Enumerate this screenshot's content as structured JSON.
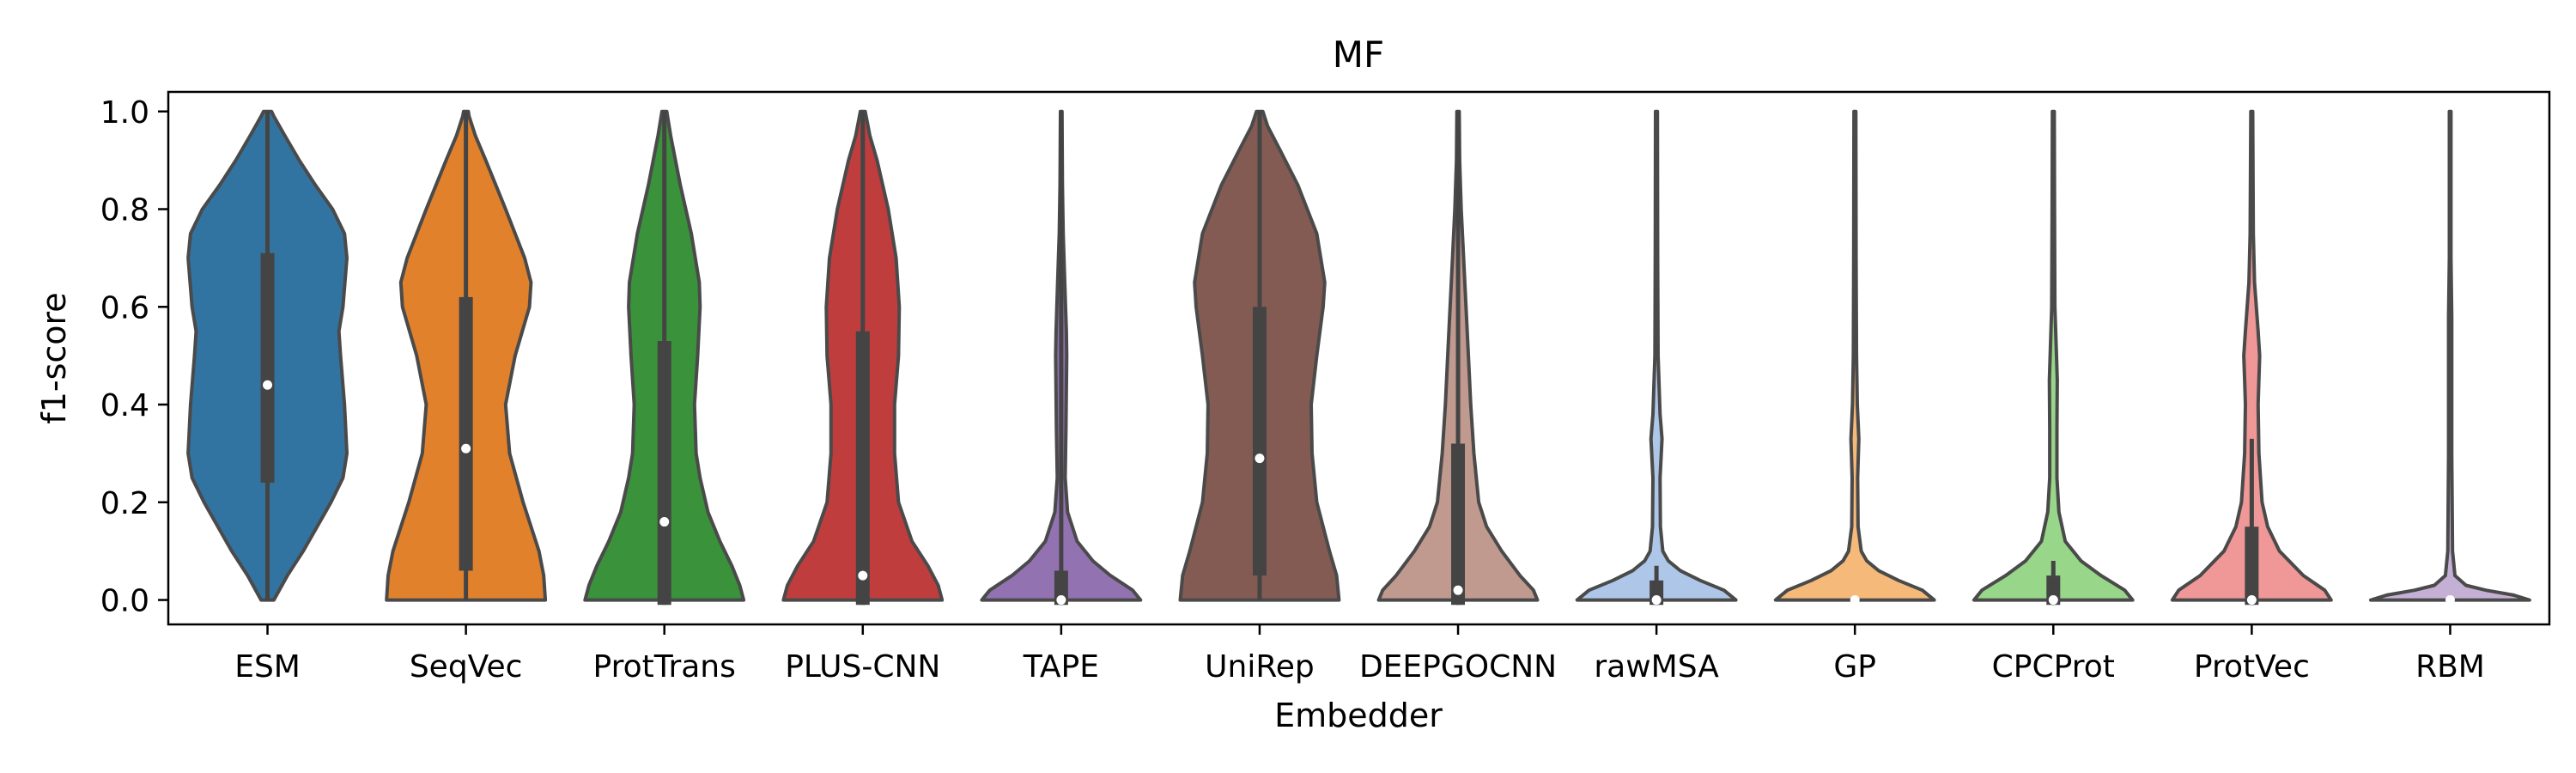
{
  "chart_data": {
    "type": "violin",
    "title": "MF",
    "xlabel": "Embedder",
    "ylabel": "f1-score",
    "ylim": [
      -0.05,
      1.04
    ],
    "yticks": [
      0.0,
      0.2,
      0.4,
      0.6,
      0.8,
      1.0
    ],
    "ytick_labels": [
      "0.0",
      "0.2",
      "0.4",
      "0.6",
      "0.8",
      "1.0"
    ],
    "grid": false,
    "legend": "none",
    "categories": [
      "ESM",
      "SeqVec",
      "ProtTrans",
      "PLUS-CNN",
      "TAPE",
      "UniRep",
      "DEEPGOCNN",
      "rawMSA",
      "GP",
      "CPCProt",
      "ProtVec",
      "RBM"
    ],
    "series": [
      {
        "name": "ESM",
        "color": "#3274a1",
        "median": 0.44,
        "q1": 0.24,
        "q3": 0.71,
        "whisker_low": 0.0,
        "whisker_high": 1.0,
        "density": [
          [
            0.0,
            0.08
          ],
          [
            0.05,
            0.25
          ],
          [
            0.1,
            0.45
          ],
          [
            0.2,
            0.8
          ],
          [
            0.25,
            0.95
          ],
          [
            0.3,
            1.0
          ],
          [
            0.4,
            0.97
          ],
          [
            0.5,
            0.92
          ],
          [
            0.55,
            0.9
          ],
          [
            0.6,
            0.95
          ],
          [
            0.7,
            1.0
          ],
          [
            0.75,
            0.97
          ],
          [
            0.8,
            0.82
          ],
          [
            0.85,
            0.6
          ],
          [
            0.9,
            0.4
          ],
          [
            0.95,
            0.22
          ],
          [
            0.99,
            0.08
          ],
          [
            1.0,
            0.05
          ]
        ]
      },
      {
        "name": "SeqVec",
        "color": "#e1812c",
        "median": 0.31,
        "q1": 0.06,
        "q3": 0.62,
        "whisker_low": 0.0,
        "whisker_high": 1.0,
        "density": [
          [
            0.0,
            1.0
          ],
          [
            0.05,
            0.98
          ],
          [
            0.1,
            0.92
          ],
          [
            0.2,
            0.72
          ],
          [
            0.3,
            0.55
          ],
          [
            0.4,
            0.5
          ],
          [
            0.5,
            0.62
          ],
          [
            0.6,
            0.8
          ],
          [
            0.65,
            0.82
          ],
          [
            0.7,
            0.74
          ],
          [
            0.8,
            0.5
          ],
          [
            0.9,
            0.25
          ],
          [
            0.95,
            0.12
          ],
          [
            0.99,
            0.04
          ],
          [
            1.0,
            0.03
          ]
        ]
      },
      {
        "name": "ProtTrans",
        "color": "#3a923a",
        "median": 0.16,
        "q1": -0.01,
        "q3": 0.53,
        "whisker_low": -0.01,
        "whisker_high": 1.0,
        "density": [
          [
            0.0,
            1.0
          ],
          [
            0.03,
            0.95
          ],
          [
            0.07,
            0.85
          ],
          [
            0.12,
            0.7
          ],
          [
            0.18,
            0.55
          ],
          [
            0.25,
            0.45
          ],
          [
            0.3,
            0.4
          ],
          [
            0.4,
            0.38
          ],
          [
            0.5,
            0.42
          ],
          [
            0.6,
            0.45
          ],
          [
            0.65,
            0.44
          ],
          [
            0.75,
            0.34
          ],
          [
            0.85,
            0.2
          ],
          [
            0.95,
            0.08
          ],
          [
            1.0,
            0.03
          ]
        ]
      },
      {
        "name": "PLUS-CNN",
        "color": "#c03d3e",
        "median": 0.05,
        "q1": -0.01,
        "q3": 0.55,
        "whisker_low": -0.01,
        "whisker_high": 1.0,
        "density": [
          [
            0.0,
            1.0
          ],
          [
            0.03,
            0.95
          ],
          [
            0.07,
            0.82
          ],
          [
            0.12,
            0.62
          ],
          [
            0.2,
            0.45
          ],
          [
            0.3,
            0.4
          ],
          [
            0.4,
            0.4
          ],
          [
            0.5,
            0.45
          ],
          [
            0.6,
            0.46
          ],
          [
            0.7,
            0.42
          ],
          [
            0.8,
            0.32
          ],
          [
            0.9,
            0.18
          ],
          [
            0.95,
            0.09
          ],
          [
            1.0,
            0.03
          ]
        ]
      },
      {
        "name": "TAPE",
        "color": "#9372b2",
        "median": 0.0,
        "q1": -0.01,
        "q3": 0.06,
        "whisker_low": -0.01,
        "whisker_high": 1.0,
        "density": [
          [
            0.0,
            1.0
          ],
          [
            0.02,
            0.9
          ],
          [
            0.05,
            0.62
          ],
          [
            0.08,
            0.4
          ],
          [
            0.12,
            0.2
          ],
          [
            0.18,
            0.08
          ],
          [
            0.25,
            0.05
          ],
          [
            0.35,
            0.06
          ],
          [
            0.5,
            0.07
          ],
          [
            0.55,
            0.065
          ],
          [
            0.65,
            0.045
          ],
          [
            0.75,
            0.025
          ],
          [
            0.85,
            0.015
          ],
          [
            1.0,
            0.01
          ]
        ]
      },
      {
        "name": "UniRep",
        "color": "#845b53",
        "median": 0.29,
        "q1": 0.05,
        "q3": 0.6,
        "whisker_low": 0.0,
        "whisker_high": 1.0,
        "density": [
          [
            0.0,
            1.0
          ],
          [
            0.05,
            0.97
          ],
          [
            0.1,
            0.88
          ],
          [
            0.2,
            0.72
          ],
          [
            0.3,
            0.66
          ],
          [
            0.4,
            0.65
          ],
          [
            0.5,
            0.72
          ],
          [
            0.6,
            0.8
          ],
          [
            0.65,
            0.82
          ],
          [
            0.75,
            0.72
          ],
          [
            0.85,
            0.48
          ],
          [
            0.92,
            0.26
          ],
          [
            0.97,
            0.1
          ],
          [
            1.0,
            0.04
          ]
        ]
      },
      {
        "name": "DEEPGOCNN",
        "color": "#c0998f",
        "median": 0.02,
        "q1": -0.01,
        "q3": 0.32,
        "whisker_low": -0.01,
        "whisker_high": 1.0,
        "density": [
          [
            0.0,
            1.0
          ],
          [
            0.02,
            0.95
          ],
          [
            0.05,
            0.78
          ],
          [
            0.1,
            0.55
          ],
          [
            0.15,
            0.36
          ],
          [
            0.2,
            0.26
          ],
          [
            0.3,
            0.2
          ],
          [
            0.4,
            0.16
          ],
          [
            0.5,
            0.13
          ],
          [
            0.6,
            0.1
          ],
          [
            0.7,
            0.07
          ],
          [
            0.8,
            0.04
          ],
          [
            0.9,
            0.02
          ],
          [
            1.0,
            0.015
          ]
        ]
      },
      {
        "name": "rawMSA",
        "color": "#aec7e8",
        "median": 0.0,
        "q1": -0.01,
        "q3": 0.04,
        "whisker_low": -0.01,
        "whisker_high": 0.07,
        "density": [
          [
            0.0,
            1.0
          ],
          [
            0.02,
            0.85
          ],
          [
            0.04,
            0.55
          ],
          [
            0.06,
            0.3
          ],
          [
            0.08,
            0.15
          ],
          [
            0.1,
            0.08
          ],
          [
            0.15,
            0.05
          ],
          [
            0.25,
            0.045
          ],
          [
            0.33,
            0.07
          ],
          [
            0.38,
            0.045
          ],
          [
            0.5,
            0.02
          ],
          [
            0.7,
            0.015
          ],
          [
            1.0,
            0.012
          ]
        ]
      },
      {
        "name": "GP",
        "color": "#f5b97a",
        "median": 0.0,
        "q1": 0.0,
        "q3": 0.0,
        "whisker_low": 0.0,
        "whisker_high": 0.0,
        "density": [
          [
            0.0,
            1.0
          ],
          [
            0.02,
            0.85
          ],
          [
            0.04,
            0.55
          ],
          [
            0.06,
            0.3
          ],
          [
            0.08,
            0.15
          ],
          [
            0.1,
            0.08
          ],
          [
            0.15,
            0.04
          ],
          [
            0.25,
            0.035
          ],
          [
            0.33,
            0.05
          ],
          [
            0.4,
            0.03
          ],
          [
            0.5,
            0.02
          ],
          [
            0.7,
            0.015
          ],
          [
            1.0,
            0.012
          ]
        ]
      },
      {
        "name": "CPCProt",
        "color": "#98d68a",
        "median": 0.0,
        "q1": -0.01,
        "q3": 0.05,
        "whisker_low": -0.01,
        "whisker_high": 0.08,
        "density": [
          [
            0.0,
            1.0
          ],
          [
            0.02,
            0.9
          ],
          [
            0.05,
            0.6
          ],
          [
            0.08,
            0.35
          ],
          [
            0.12,
            0.15
          ],
          [
            0.18,
            0.07
          ],
          [
            0.25,
            0.045
          ],
          [
            0.35,
            0.045
          ],
          [
            0.45,
            0.05
          ],
          [
            0.5,
            0.04
          ],
          [
            0.6,
            0.02
          ],
          [
            0.8,
            0.015
          ],
          [
            1.0,
            0.012
          ]
        ]
      },
      {
        "name": "ProtVec",
        "color": "#f09797",
        "median": 0.0,
        "q1": -0.01,
        "q3": 0.15,
        "whisker_low": -0.01,
        "whisker_high": 0.33,
        "density": [
          [
            0.0,
            1.0
          ],
          [
            0.02,
            0.92
          ],
          [
            0.05,
            0.65
          ],
          [
            0.1,
            0.35
          ],
          [
            0.15,
            0.2
          ],
          [
            0.2,
            0.13
          ],
          [
            0.3,
            0.09
          ],
          [
            0.4,
            0.08
          ],
          [
            0.45,
            0.09
          ],
          [
            0.5,
            0.1
          ],
          [
            0.55,
            0.08
          ],
          [
            0.65,
            0.035
          ],
          [
            0.75,
            0.02
          ],
          [
            1.0,
            0.012
          ]
        ]
      },
      {
        "name": "RBM",
        "color": "#c5b0d5",
        "median": 0.0,
        "q1": 0.0,
        "q3": 0.0,
        "whisker_low": 0.0,
        "whisker_high": 0.0,
        "density": [
          [
            0.0,
            1.0
          ],
          [
            0.01,
            0.8
          ],
          [
            0.02,
            0.45
          ],
          [
            0.03,
            0.2
          ],
          [
            0.05,
            0.06
          ],
          [
            0.1,
            0.03
          ],
          [
            0.3,
            0.02
          ],
          [
            0.58,
            0.02
          ],
          [
            0.7,
            0.01
          ],
          [
            1.0,
            0.01
          ]
        ]
      }
    ]
  }
}
